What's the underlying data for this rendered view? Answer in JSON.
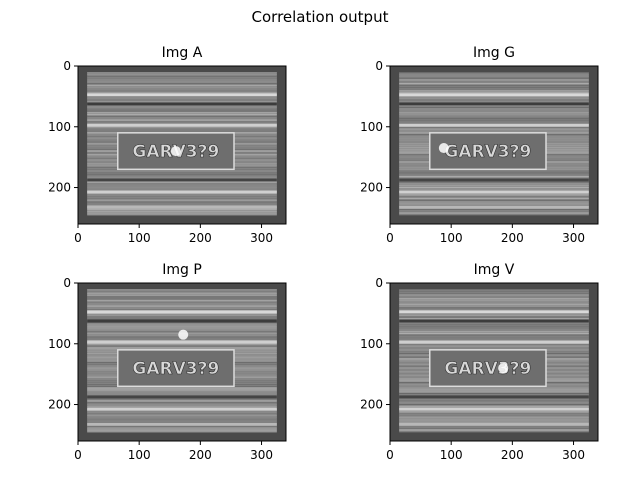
{
  "figure": {
    "title": "Correlation output"
  },
  "chart_data": [
    {
      "type": "heatmap",
      "title": "Img A",
      "plate_text": "GARV3?9",
      "xlim": [
        0,
        340
      ],
      "ylim": [
        260,
        0
      ],
      "xticks": [
        0,
        100,
        200,
        300
      ],
      "yticks": [
        0,
        100,
        200
      ],
      "colormap": "gray",
      "background": "#4a4a4a",
      "bright_spots": [
        {
          "x": 160,
          "y": 140
        }
      ],
      "content_region": {
        "x": [
          15,
          325
        ],
        "y": [
          10,
          245
        ]
      }
    },
    {
      "type": "heatmap",
      "title": "Img G",
      "plate_text": "GARV3?9",
      "xlim": [
        0,
        340
      ],
      "ylim": [
        260,
        0
      ],
      "xticks": [
        0,
        100,
        200,
        300
      ],
      "yticks": [
        0,
        100,
        200
      ],
      "colormap": "gray",
      "background": "#4a4a4a",
      "bright_spots": [
        {
          "x": 88,
          "y": 135
        }
      ],
      "content_region": {
        "x": [
          15,
          325
        ],
        "y": [
          10,
          245
        ]
      }
    },
    {
      "type": "heatmap",
      "title": "Img P",
      "plate_text": "GARV3?9",
      "xlim": [
        0,
        340
      ],
      "ylim": [
        260,
        0
      ],
      "xticks": [
        0,
        100,
        200,
        300
      ],
      "yticks": [
        0,
        100,
        200
      ],
      "colormap": "gray",
      "background": "#4a4a4a",
      "bright_spots": [
        {
          "x": 172,
          "y": 85
        }
      ],
      "content_region": {
        "x": [
          15,
          325
        ],
        "y": [
          10,
          245
        ]
      }
    },
    {
      "type": "heatmap",
      "title": "Img V",
      "plate_text": "GARV3?9",
      "xlim": [
        0,
        340
      ],
      "ylim": [
        260,
        0
      ],
      "xticks": [
        0,
        100,
        200,
        300
      ],
      "yticks": [
        0,
        100,
        200
      ],
      "colormap": "gray",
      "background": "#4a4a4a",
      "bright_spots": [
        {
          "x": 185,
          "y": 140
        }
      ],
      "content_region": {
        "x": [
          15,
          325
        ],
        "y": [
          10,
          245
        ]
      }
    }
  ]
}
